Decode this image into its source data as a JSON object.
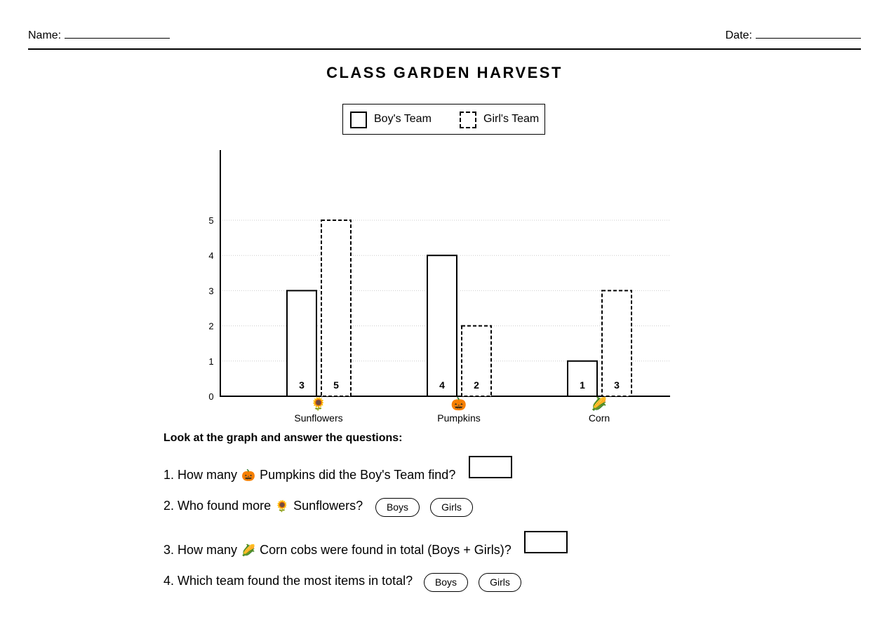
{
  "header": {
    "name_label": "Name:",
    "date_label": "Date:"
  },
  "title": "CLASS GARDEN HARVEST",
  "legend": {
    "boys_label": "Boy's Team",
    "girls_label": "Girl's Team"
  },
  "chart_data": {
    "type": "bar",
    "title": "CLASS GARDEN HARVEST",
    "categories": [
      "Sunflowers",
      "Pumpkins",
      "Corn"
    ],
    "category_icons": [
      "🌻",
      "🎃",
      "🌽"
    ],
    "series": [
      {
        "name": "Boy's Team",
        "values": [
          3,
          4,
          1
        ],
        "style": "solid"
      },
      {
        "name": "Girl's Team",
        "values": [
          5,
          2,
          3
        ],
        "style": "dashed"
      }
    ],
    "y_ticks": [
      0,
      1,
      2,
      3,
      4,
      5
    ],
    "ylim": [
      0,
      7
    ],
    "grid": true,
    "xlabel": "",
    "ylabel": "",
    "legend_position": "top-center",
    "colors": {
      "bar_fill": "#ffffff",
      "bar_stroke": "#000000",
      "grid": "#cccccc"
    }
  },
  "questions": {
    "heading": "Look at the graph and answer the questions:",
    "items": [
      {
        "prefix": "1. How many",
        "emoji": "🎃",
        "suffix": "Pumpkins did the Boy's Team find?"
      },
      {
        "prefix": "2. Who found more",
        "emoji": "🌻",
        "suffix": "Sunflowers?",
        "options": [
          "Boys",
          "Girls"
        ]
      },
      {
        "prefix": "3. How many",
        "emoji": "🌽",
        "suffix": "Corn cobs were found in total (Boys + Girls)?"
      },
      {
        "text": "4. Which team found the most items in total?",
        "options": [
          "Boys",
          "Girls"
        ]
      }
    ]
  }
}
